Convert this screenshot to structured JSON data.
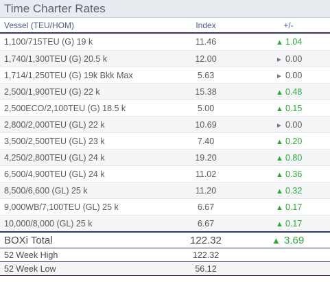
{
  "title": "Time Charter Rates",
  "columns": {
    "vessel": "Vessel (TEU/HOM)",
    "index": "Index",
    "change": "+/-"
  },
  "rows": [
    {
      "vessel": "1,100/715TEU (G) 19 k",
      "index": "11.46",
      "direction": "up",
      "arrow": "▲",
      "change": "1.04"
    },
    {
      "vessel": "1,740/1,300TEU (G) 20.5 k",
      "index": "12.00",
      "direction": "flat",
      "arrow": "►",
      "change": "0.00"
    },
    {
      "vessel": "1,714/1,250TEU (G) 19k Bkk Max",
      "index": "5.63",
      "direction": "flat",
      "arrow": "►",
      "change": "0.00"
    },
    {
      "vessel": "2,500/1,900TEU (G) 22 k",
      "index": "15.38",
      "direction": "up",
      "arrow": "▲",
      "change": "0.48"
    },
    {
      "vessel": "2,500ECO/2,100TEU (G) 18.5 k",
      "index": "5.00",
      "direction": "up",
      "arrow": "▲",
      "change": "0.15"
    },
    {
      "vessel": "2,800/2,000TEU (GL) 22 k",
      "index": "10.69",
      "direction": "flat",
      "arrow": "►",
      "change": "0.00"
    },
    {
      "vessel": "3,500/2,500TEU (GL) 23 k",
      "index": "7.40",
      "direction": "up",
      "arrow": "▲",
      "change": "0.20"
    },
    {
      "vessel": "4,250/2,800TEU (GL) 24 k",
      "index": "19.20",
      "direction": "up",
      "arrow": "▲",
      "change": "0.80"
    },
    {
      "vessel": "6,500/4,900TEU (GL) 24 k",
      "index": "11.02",
      "direction": "up",
      "arrow": "▲",
      "change": "0.36"
    },
    {
      "vessel": "8,500/6,600 (GL) 25 k",
      "index": "11.20",
      "direction": "up",
      "arrow": "▲",
      "change": "0.32"
    },
    {
      "vessel": "9,000WB/7,100TEU (GL) 25 k",
      "index": "6.67",
      "direction": "up",
      "arrow": "▲",
      "change": "0.17"
    },
    {
      "vessel": "10,000/8,000 (GL) 25 k",
      "index": "6.67",
      "direction": "up",
      "arrow": "▲",
      "change": "0.17"
    }
  ],
  "total": {
    "label": "BOXi Total",
    "index": "122.32",
    "arrow": "▲",
    "change": "3.69"
  },
  "stats": [
    {
      "label": "52 Week High",
      "value": "122.32"
    },
    {
      "label": "52 Week Low",
      "value": "56.12"
    }
  ],
  "colors": {
    "up": "#2eaa3a",
    "flat": "#7a7a80",
    "rule": "#2a3a6a"
  }
}
